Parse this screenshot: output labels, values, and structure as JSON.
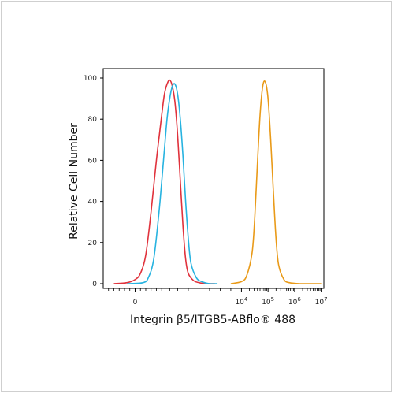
{
  "chart_data": {
    "type": "line",
    "xlabel": "Integrin β5/ITGB5-ABflo® 488",
    "ylabel": "Relative Cell Number",
    "ylim": [
      0,
      100
    ],
    "y_ticks": [
      "0",
      "20",
      "40",
      "60",
      "80",
      "100"
    ],
    "x_ticks": [
      {
        "base": "0",
        "exp": ""
      },
      {
        "base": "10",
        "exp": "4"
      },
      {
        "base": "10",
        "exp": "5"
      },
      {
        "base": "10",
        "exp": "6"
      },
      {
        "base": "10",
        "exp": "7"
      }
    ],
    "x_tick_values": [
      0,
      4,
      5,
      6,
      7
    ],
    "xlim": [
      -1.2,
      7.1
    ],
    "grid": false,
    "series": [
      {
        "color": "#e0323c",
        "x": [
          -0.8,
          -0.3,
          0.0,
          0.2,
          0.4,
          0.6,
          0.8,
          1.0,
          1.1,
          1.2,
          1.3,
          1.4,
          1.5,
          1.6,
          1.7,
          1.8,
          1.9,
          2.0,
          2.2,
          2.4,
          2.7,
          3.0
        ],
        "y": [
          0,
          0.5,
          2,
          5,
          14,
          35,
          60,
          82,
          92,
          97,
          99,
          96,
          88,
          72,
          50,
          28,
          12,
          5,
          1.5,
          0.5,
          0,
          0
        ]
      },
      {
        "color": "#27b3e0",
        "x": [
          -0.3,
          0.3,
          0.5,
          0.7,
          0.9,
          1.1,
          1.2,
          1.3,
          1.4,
          1.5,
          1.6,
          1.7,
          1.8,
          1.9,
          2.0,
          2.1,
          2.3,
          2.5,
          2.8,
          3.1
        ],
        "y": [
          0,
          0.5,
          3,
          12,
          35,
          65,
          80,
          90,
          96,
          97,
          92,
          80,
          62,
          40,
          22,
          10,
          3,
          1,
          0,
          0
        ]
      },
      {
        "color": "#e99a18",
        "x": [
          3.6,
          4.0,
          4.2,
          4.4,
          4.5,
          4.6,
          4.7,
          4.8,
          4.9,
          5.0,
          5.1,
          5.2,
          5.3,
          5.4,
          5.6,
          5.8,
          6.2,
          7.0
        ],
        "y": [
          0,
          1,
          4,
          15,
          32,
          58,
          82,
          96,
          98,
          90,
          70,
          45,
          22,
          9,
          2,
          0.5,
          0,
          0
        ]
      }
    ]
  }
}
